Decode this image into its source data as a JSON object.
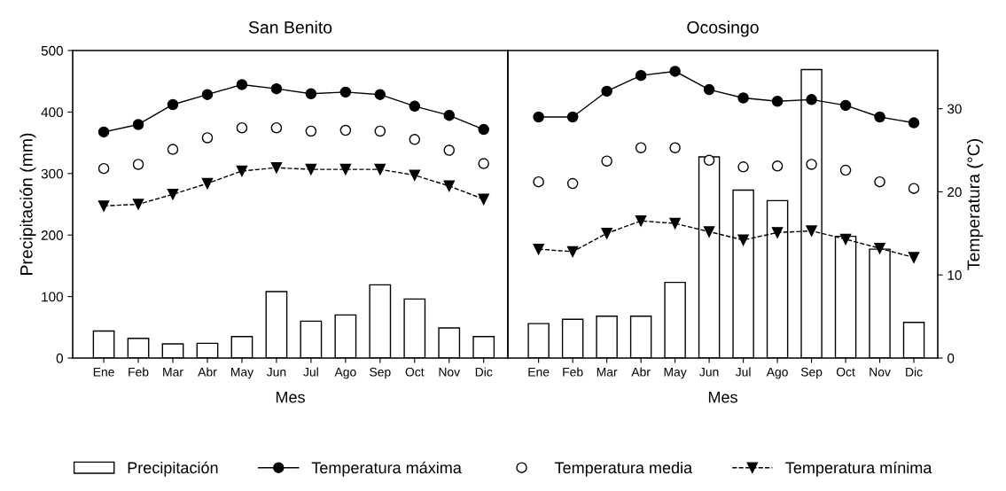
{
  "chart_data": [
    {
      "type": "bar",
      "title": "San Benito",
      "xlabel": "Mes",
      "ylabel": "Precipitación (mm)",
      "categories": [
        "Ene",
        "Feb",
        "Mar",
        "Abr",
        "May",
        "Jun",
        "Jul",
        "Ago",
        "Sep",
        "Oct",
        "Nov",
        "Dic"
      ],
      "ylim": [
        0,
        500
      ],
      "yticks": [
        0,
        100,
        200,
        300,
        400,
        500
      ],
      "y2lim": [
        0,
        37
      ],
      "tick_labels": [
        "x",
        "y"
      ],
      "legend": "bottom",
      "series": [
        {
          "name": "Precipitación",
          "color": "#ffffff",
          "values": [
            44,
            32,
            23,
            24,
            35,
            108,
            60,
            70,
            119,
            96,
            49,
            35
          ]
        },
        {
          "name": "Temperatura máxima",
          "type": "line",
          "axis": "y2",
          "color": "#000000",
          "marker": "circle",
          "line_style": "solid",
          "values": [
            27.2,
            28.1,
            30.5,
            31.7,
            32.9,
            32.4,
            31.8,
            32.0,
            31.7,
            30.3,
            29.2,
            27.5
          ]
        },
        {
          "name": "Temperatura media",
          "type": "scatter",
          "axis": "y2",
          "color": "#000000",
          "marker": "circle",
          "values": [
            22.8,
            23.3,
            25.1,
            26.5,
            27.7,
            27.7,
            27.3,
            27.4,
            27.3,
            26.3,
            25.0,
            23.4
          ]
        },
        {
          "name": "Temperatura mínima",
          "type": "line",
          "axis": "y2",
          "color": "#000000",
          "marker": "triangle",
          "line_style": "dashed",
          "values": [
            18.3,
            18.5,
            19.7,
            21.0,
            22.5,
            22.9,
            22.7,
            22.7,
            22.7,
            22.0,
            20.7,
            19.1
          ]
        }
      ]
    },
    {
      "type": "bar",
      "title": "Ocosingo",
      "xlabel": "Mes",
      "y2label": "Temperatura (°C)",
      "categories": [
        "Ene",
        "Feb",
        "Mar",
        "Abr",
        "May",
        "Jun",
        "Jul",
        "Ago",
        "Sep",
        "Oct",
        "Nov",
        "Dic"
      ],
      "ylim": [
        0,
        500
      ],
      "y2lim": [
        0,
        37
      ],
      "y2ticks": [
        0,
        10,
        20,
        30
      ],
      "tick_labels": [
        "x",
        "y2"
      ],
      "series": [
        {
          "color": "#ffffff",
          "values": [
            56,
            63,
            68,
            68,
            123,
            327,
            273,
            256,
            469,
            198,
            177,
            58
          ]
        },
        {
          "type": "line",
          "axis": "y2",
          "color": "#000000",
          "marker": "circle",
          "line_style": "solid",
          "values": [
            29.0,
            29.0,
            32.1,
            34.0,
            34.5,
            32.3,
            31.3,
            30.9,
            31.1,
            30.4,
            29.0,
            28.3
          ]
        },
        {
          "type": "scatter",
          "axis": "y2",
          "color": "#000000",
          "marker": "circle",
          "values": [
            21.2,
            21.0,
            23.7,
            25.3,
            25.3,
            23.8,
            23.0,
            23.1,
            23.3,
            22.6,
            21.2,
            20.4
          ]
        },
        {
          "type": "line",
          "axis": "y2",
          "color": "#000000",
          "marker": "triangle",
          "line_style": "dashed",
          "values": [
            13.1,
            12.8,
            15.0,
            16.5,
            16.2,
            15.2,
            14.2,
            15.1,
            15.3,
            14.3,
            13.2,
            12.1
          ]
        }
      ]
    }
  ]
}
